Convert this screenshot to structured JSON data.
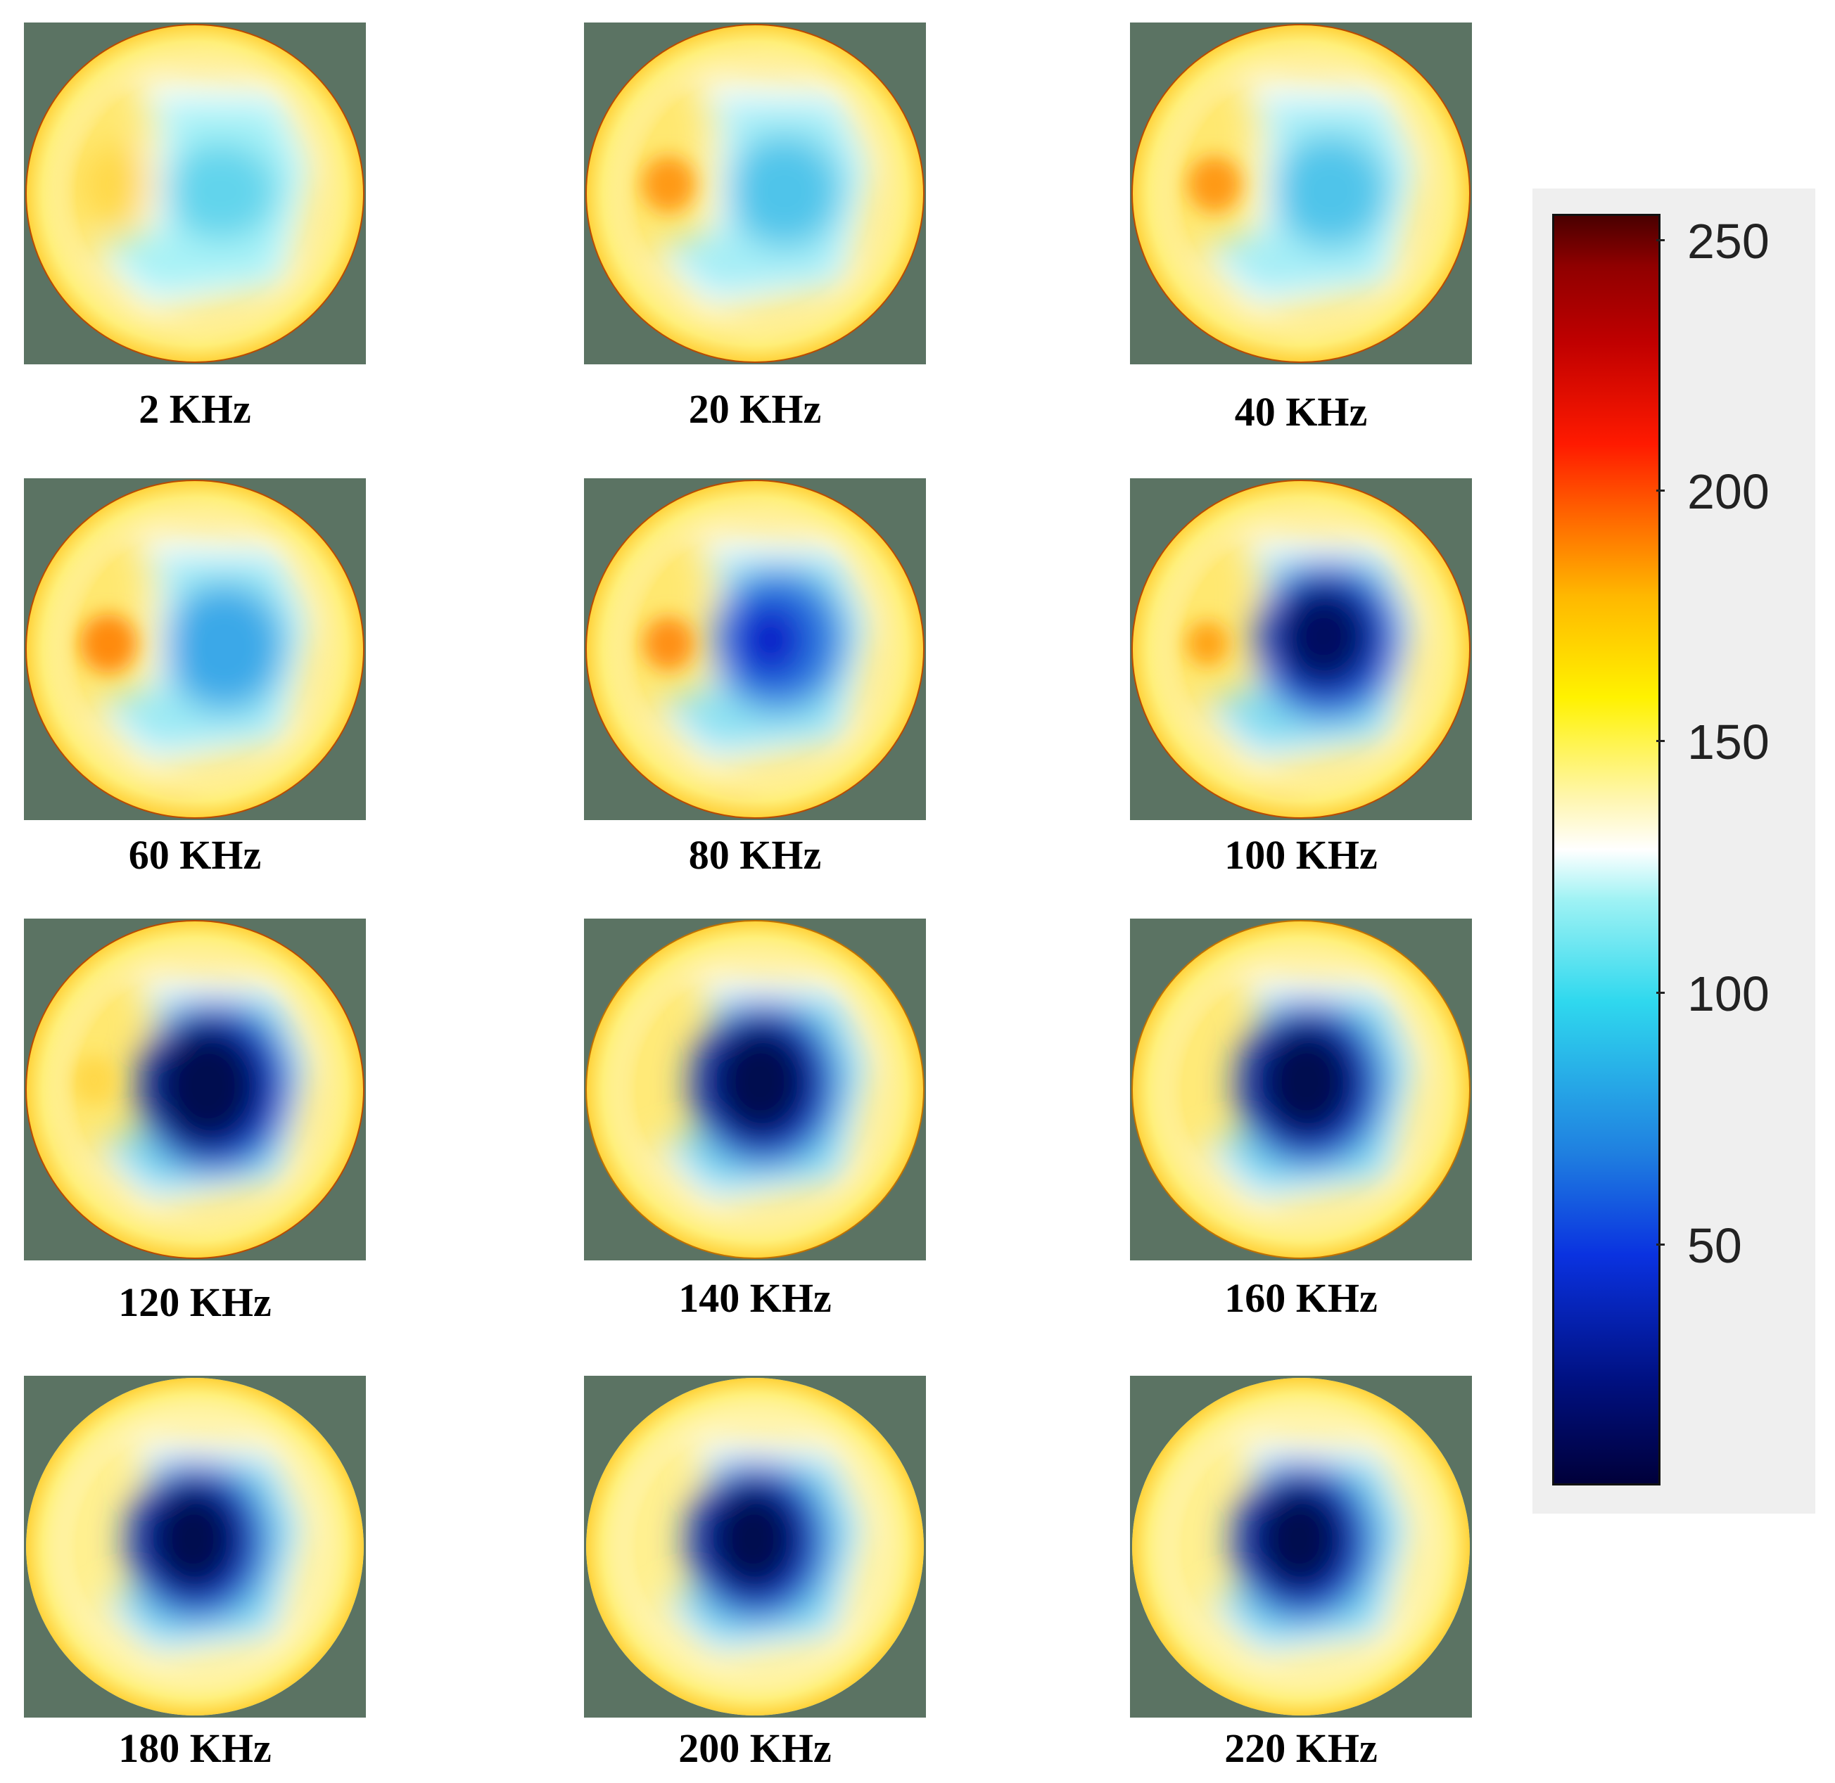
{
  "panels": [
    {
      "label": "2 KHz"
    },
    {
      "label": "20 KHz"
    },
    {
      "label": "40 KHz"
    },
    {
      "label": "60 KHz"
    },
    {
      "label": "80 KHz"
    },
    {
      "label": "100 KHz"
    },
    {
      "label": "120 KHz"
    },
    {
      "label": "140 KHz"
    },
    {
      "label": "160 KHz"
    },
    {
      "label": "180 KHz"
    },
    {
      "label": "200 KHz"
    },
    {
      "label": "220 KHz"
    }
  ],
  "colorbar": {
    "ticks": [
      "250",
      "200",
      "150",
      "100",
      "50"
    ],
    "tick_values": [
      250,
      200,
      150,
      100,
      50
    ],
    "range": [
      0,
      255
    ]
  }
}
